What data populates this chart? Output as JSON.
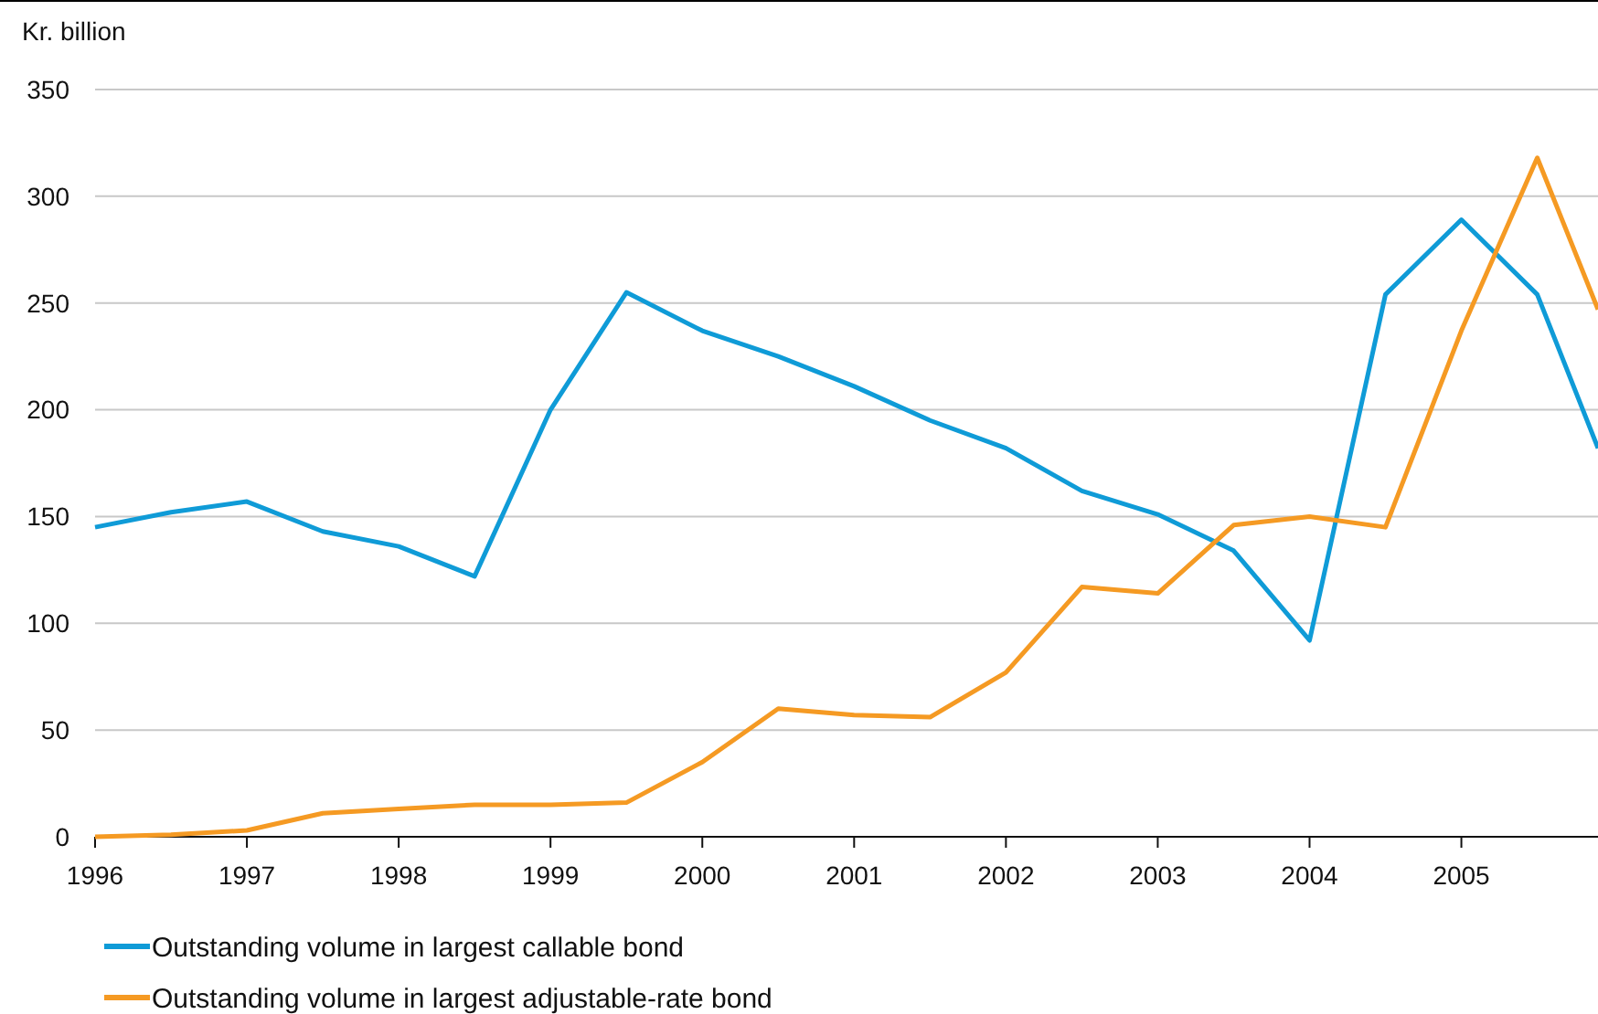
{
  "chart_data": {
    "type": "line",
    "ylabel": "Kr. billion",
    "x": [
      1996,
      1996.5,
      1997,
      1997.5,
      1998,
      1998.5,
      1999,
      1999.5,
      2000,
      2000.5,
      2001,
      2001.5,
      2002,
      2002.5,
      2003,
      2003.5,
      2004,
      2004.5,
      2005,
      2005.5,
      2005.9
    ],
    "series": [
      {
        "name": "Outstanding volume in largest callable bond",
        "color": "#0f9bd7",
        "values": [
          145,
          152,
          157,
          143,
          136,
          122,
          200,
          255,
          237,
          225,
          211,
          195,
          182,
          162,
          151,
          134,
          92,
          254,
          289,
          254,
          182
        ]
      },
      {
        "name": "Outstanding volume in largest adjustable-rate bond",
        "color": "#f59a23",
        "values": [
          0,
          1,
          3,
          11,
          13,
          15,
          15,
          16,
          35,
          60,
          57,
          56,
          77,
          117,
          114,
          146,
          150,
          145,
          237,
          318,
          247
        ]
      }
    ],
    "xlim": [
      1996,
      2005.9
    ],
    "xticks": [
      1996,
      1997,
      1998,
      1999,
      2000,
      2001,
      2002,
      2003,
      2004,
      2005
    ],
    "ylim": [
      0,
      350
    ],
    "yticks": [
      0,
      50,
      100,
      150,
      200,
      250,
      300,
      350
    ],
    "grid": "y",
    "legend": "bottom",
    "line_style": "solid"
  }
}
